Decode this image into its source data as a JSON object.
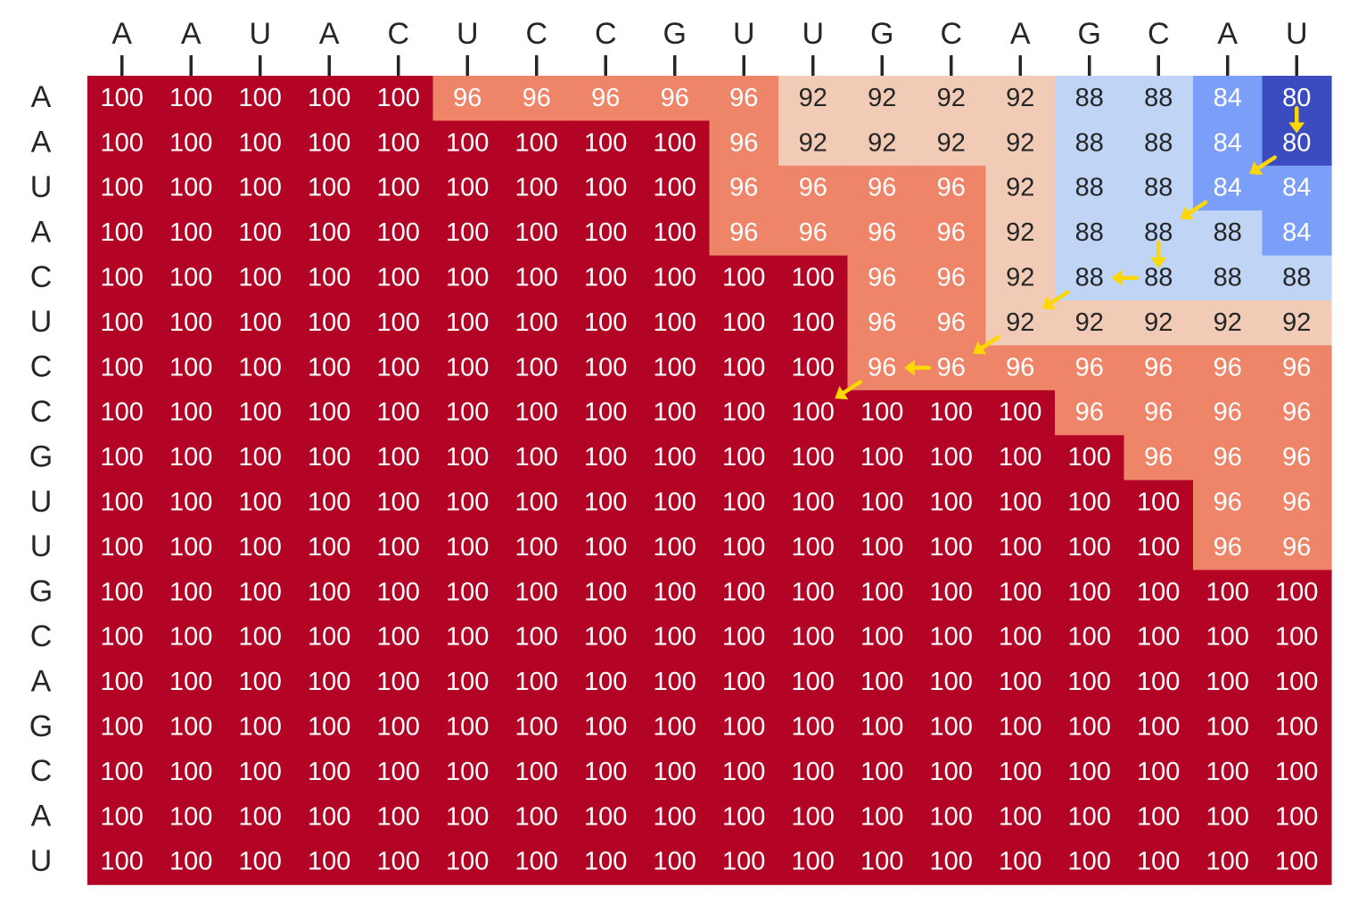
{
  "chart_data": {
    "type": "heatmap",
    "title": "",
    "xlabel": "",
    "ylabel": "",
    "col_labels": [
      "A",
      "A",
      "U",
      "A",
      "C",
      "U",
      "C",
      "C",
      "G",
      "U",
      "U",
      "G",
      "C",
      "A",
      "G",
      "C",
      "A",
      "U"
    ],
    "row_labels": [
      "A",
      "A",
      "U",
      "A",
      "C",
      "U",
      "C",
      "C",
      "G",
      "U",
      "U",
      "G",
      "C",
      "A",
      "G",
      "C",
      "A",
      "U"
    ],
    "values": [
      [
        100,
        100,
        100,
        100,
        100,
        96,
        96,
        96,
        96,
        96,
        92,
        92,
        92,
        92,
        88,
        88,
        84,
        80
      ],
      [
        100,
        100,
        100,
        100,
        100,
        100,
        100,
        100,
        100,
        96,
        92,
        92,
        92,
        92,
        88,
        88,
        84,
        80
      ],
      [
        100,
        100,
        100,
        100,
        100,
        100,
        100,
        100,
        100,
        96,
        96,
        96,
        96,
        92,
        88,
        88,
        84,
        84
      ],
      [
        100,
        100,
        100,
        100,
        100,
        100,
        100,
        100,
        100,
        96,
        96,
        96,
        96,
        92,
        88,
        88,
        88,
        84
      ],
      [
        100,
        100,
        100,
        100,
        100,
        100,
        100,
        100,
        100,
        100,
        100,
        96,
        96,
        92,
        88,
        88,
        88,
        88
      ],
      [
        100,
        100,
        100,
        100,
        100,
        100,
        100,
        100,
        100,
        100,
        100,
        96,
        96,
        92,
        92,
        92,
        92,
        92
      ],
      [
        100,
        100,
        100,
        100,
        100,
        100,
        100,
        100,
        100,
        100,
        100,
        96,
        96,
        96,
        96,
        96,
        96,
        96
      ],
      [
        100,
        100,
        100,
        100,
        100,
        100,
        100,
        100,
        100,
        100,
        100,
        100,
        100,
        100,
        96,
        96,
        96,
        96
      ],
      [
        100,
        100,
        100,
        100,
        100,
        100,
        100,
        100,
        100,
        100,
        100,
        100,
        100,
        100,
        100,
        96,
        96,
        96
      ],
      [
        100,
        100,
        100,
        100,
        100,
        100,
        100,
        100,
        100,
        100,
        100,
        100,
        100,
        100,
        100,
        100,
        96,
        96
      ],
      [
        100,
        100,
        100,
        100,
        100,
        100,
        100,
        100,
        100,
        100,
        100,
        100,
        100,
        100,
        100,
        100,
        96,
        96
      ],
      [
        100,
        100,
        100,
        100,
        100,
        100,
        100,
        100,
        100,
        100,
        100,
        100,
        100,
        100,
        100,
        100,
        100,
        100
      ],
      [
        100,
        100,
        100,
        100,
        100,
        100,
        100,
        100,
        100,
        100,
        100,
        100,
        100,
        100,
        100,
        100,
        100,
        100
      ],
      [
        100,
        100,
        100,
        100,
        100,
        100,
        100,
        100,
        100,
        100,
        100,
        100,
        100,
        100,
        100,
        100,
        100,
        100
      ],
      [
        100,
        100,
        100,
        100,
        100,
        100,
        100,
        100,
        100,
        100,
        100,
        100,
        100,
        100,
        100,
        100,
        100,
        100
      ],
      [
        100,
        100,
        100,
        100,
        100,
        100,
        100,
        100,
        100,
        100,
        100,
        100,
        100,
        100,
        100,
        100,
        100,
        100
      ],
      [
        100,
        100,
        100,
        100,
        100,
        100,
        100,
        100,
        100,
        100,
        100,
        100,
        100,
        100,
        100,
        100,
        100,
        100
      ],
      [
        100,
        100,
        100,
        100,
        100,
        100,
        100,
        100,
        100,
        100,
        100,
        100,
        100,
        100,
        100,
        100,
        100,
        100
      ]
    ],
    "color_scale": {
      "100": "#b40426",
      "96": "#ee8468",
      "92": "#f2cbb7",
      "88": "#c0d4f5",
      "84": "#7b9ff9",
      "80": "#3b4cc0"
    },
    "text_colors": {
      "light": "#ffffff",
      "dark": "#262626"
    },
    "traceback_path": {
      "color": "#ffd700",
      "steps": [
        {
          "from": [
            0,
            17
          ],
          "to": [
            1,
            17
          ]
        },
        {
          "from": [
            1,
            17
          ],
          "to": [
            2,
            16
          ]
        },
        {
          "from": [
            2,
            16
          ],
          "to": [
            3,
            15
          ]
        },
        {
          "from": [
            3,
            15
          ],
          "to": [
            4,
            15
          ]
        },
        {
          "from": [
            4,
            15
          ],
          "to": [
            4,
            14
          ]
        },
        {
          "from": [
            4,
            14
          ],
          "to": [
            5,
            13
          ]
        },
        {
          "from": [
            5,
            13
          ],
          "to": [
            6,
            12
          ]
        },
        {
          "from": [
            6,
            12
          ],
          "to": [
            6,
            11
          ]
        },
        {
          "from": [
            6,
            11
          ],
          "to": [
            7,
            10
          ]
        }
      ]
    }
  }
}
